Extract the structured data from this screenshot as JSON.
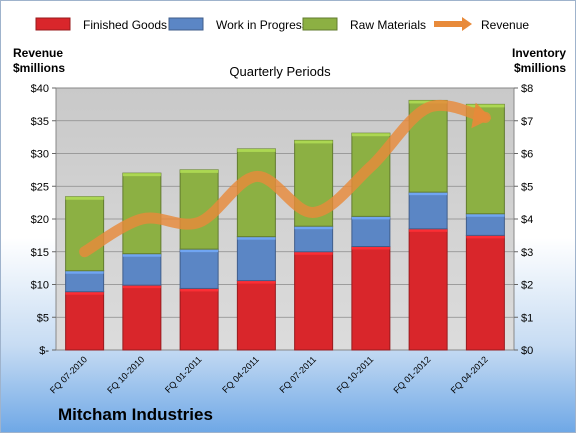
{
  "company": "Mitcham Industries",
  "chart_data": {
    "type": "bar",
    "subtitle": "Quarterly Periods",
    "ylabel_left": [
      "Revenue",
      "$millions"
    ],
    "ylabel_right": [
      "Inventory",
      "$millions"
    ],
    "categories": [
      "FQ 07-2010",
      "FQ 10-2010",
      "FQ 01-2011",
      "FQ 04-2011",
      "FQ 07-2011",
      "FQ 10-2011",
      "FQ 01-2012",
      "FQ 04-2012"
    ],
    "left_ticks": [
      "$-",
      "$5",
      "$10",
      "$15",
      "$20",
      "$25",
      "$30",
      "$35",
      "$40"
    ],
    "right_ticks": [
      "$0",
      "$1",
      "$2",
      "$3",
      "$4",
      "$5",
      "$6",
      "$7",
      "$8"
    ],
    "ylim_left": [
      0,
      40
    ],
    "ylim_right": [
      0,
      8
    ],
    "legend_position": "top",
    "series": [
      {
        "name": "Finished Goods",
        "kind": "stacked-bar",
        "axis": "right",
        "color": "#d9262b",
        "values": [
          1.78,
          1.98,
          1.88,
          2.12,
          3.0,
          3.16,
          3.7,
          3.5
        ]
      },
      {
        "name": "Work in Progress",
        "kind": "stacked-bar",
        "axis": "right",
        "color": "#5b86c5",
        "values": [
          0.64,
          0.96,
          1.2,
          1.34,
          0.78,
          0.92,
          1.12,
          0.66
        ]
      },
      {
        "name": "Raw Materials",
        "kind": "stacked-bar",
        "axis": "right",
        "color": "#8cb043",
        "values": [
          2.26,
          2.46,
          2.42,
          2.68,
          2.62,
          2.54,
          2.8,
          3.34
        ]
      },
      {
        "name": "Revenue",
        "kind": "line",
        "axis": "left",
        "color": "#e88a3a",
        "values": [
          15,
          20,
          19.5,
          26.5,
          21,
          28,
          37,
          35.5
        ]
      }
    ],
    "gridlines": true
  }
}
